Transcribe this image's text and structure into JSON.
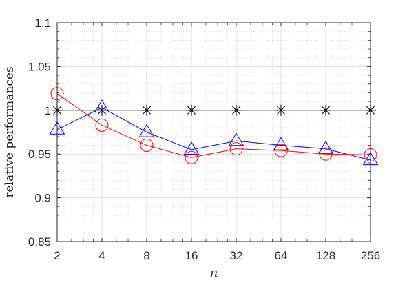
{
  "chart_data": {
    "type": "line",
    "categories": [
      "2",
      "4",
      "8",
      "16",
      "32",
      "64",
      "128",
      "256"
    ],
    "x": [
      2,
      4,
      8,
      16,
      32,
      64,
      128,
      256
    ],
    "xscale": "log2",
    "ylim": [
      0.85,
      1.1
    ],
    "yticks": [
      0.85,
      0.9,
      0.95,
      1,
      1.05,
      1.1
    ],
    "ytick_labels": [
      "0.85",
      "0.9",
      "0.95",
      "1",
      "1.05",
      "1.1"
    ],
    "xlabel": "n",
    "ylabel": "relative performances",
    "grid": true,
    "minor_grid": true,
    "legend": "none",
    "series": [
      {
        "marker": "star",
        "color": "#000000",
        "values": [
          1,
          1,
          1,
          1,
          1,
          1,
          1,
          1
        ]
      },
      {
        "marker": "triangle",
        "color": "#0000ff",
        "values": [
          0.978,
          1.003,
          0.975,
          0.955,
          0.965,
          0.96,
          0.956,
          0.943
        ]
      },
      {
        "marker": "circle",
        "color": "#ff0000",
        "values": [
          1.019,
          0.983,
          0.96,
          0.946,
          0.956,
          0.954,
          0.95,
          0.949
        ]
      }
    ]
  }
}
